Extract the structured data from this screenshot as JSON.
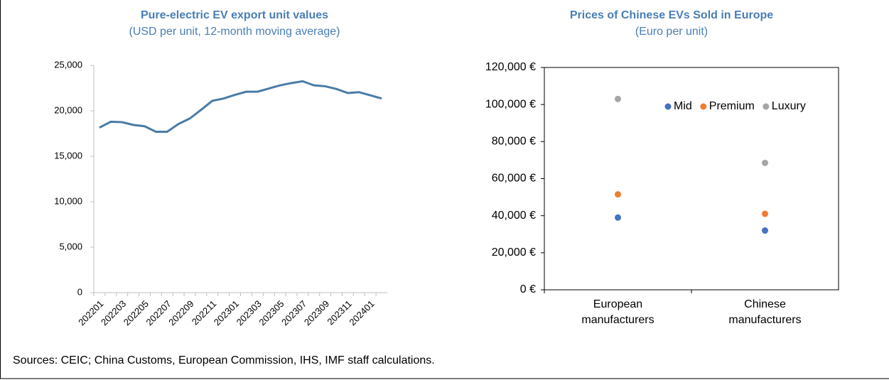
{
  "chart_data": [
    {
      "type": "line",
      "title": "Pure-electric EV export unit values",
      "subtitle": "(USD per unit, 12-month moving average)",
      "categories": [
        "202201",
        null,
        "202203",
        null,
        "202205",
        null,
        "202207",
        null,
        "202209",
        null,
        "202211",
        null,
        "202301",
        null,
        "202303",
        null,
        "202305",
        null,
        "202307",
        null,
        "202309",
        null,
        "202311",
        null,
        "202401",
        null
      ],
      "values": [
        18150,
        18800,
        18750,
        18450,
        18300,
        17700,
        17700,
        18550,
        19150,
        20100,
        21100,
        21350,
        21750,
        22100,
        22100,
        22450,
        22800,
        23050,
        23250,
        22800,
        22700,
        22400,
        21950,
        22050,
        21700,
        21350
      ],
      "color": "#4a7ba7",
      "ylim": [
        0,
        25000
      ],
      "yticks": [
        0,
        {
          "value": 5000,
          "label": "5,000"
        },
        {
          "value": 10000,
          "label": "10,000"
        },
        {
          "value": 15000,
          "label": "15,000"
        },
        {
          "value": 20000,
          "label": "20,000"
        },
        {
          "value": 25000,
          "label": "25,000"
        }
      ],
      "grid": false
    },
    {
      "type": "dot",
      "title": "Prices of Chinese EVs Sold in Europe",
      "subtitle": "(Euro per unit)",
      "categories": [
        "European manufacturers",
        "Chinese manufacturers"
      ],
      "series": [
        {
          "name": "Mid",
          "color": "#4472c4",
          "values": [
            39000,
            32000
          ]
        },
        {
          "name": "Premium",
          "color": "#ed7d31",
          "values": [
            51500,
            41000
          ]
        },
        {
          "name": "Luxury",
          "color": "#a5a5a5",
          "values": [
            103000,
            68500
          ]
        }
      ],
      "ylim": [
        0,
        120000
      ],
      "yticks": [
        {
          "value": 0,
          "label": "0 €"
        },
        {
          "value": 20000,
          "label": "20,000 €"
        },
        {
          "value": 40000,
          "label": "40,000 €"
        },
        {
          "value": 60000,
          "label": "60,000 €"
        },
        {
          "value": 80000,
          "label": "80,000 €"
        },
        {
          "value": 100000,
          "label": "100,000 €"
        },
        {
          "value": 120000,
          "label": "120,000 €"
        }
      ],
      "legend": "top-right",
      "grid": false
    }
  ],
  "source": "Sources: CEIC; China Customs, European Commission, IHS, IMF staff calculations."
}
